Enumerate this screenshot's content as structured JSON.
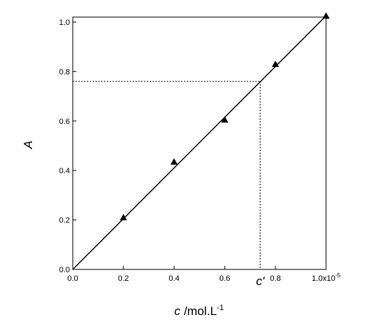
{
  "chart_data": {
    "type": "scatter",
    "xlabel_symbol": "c",
    "xlabel_unit": "/mol.L",
    "xlabel_unit_exponent": "-1",
    "ylabel": "A",
    "xlim": [
      0,
      1.0
    ],
    "ylim": [
      0,
      1.02
    ],
    "x_ticks": [
      {
        "value": 0.0,
        "label": "0.0"
      },
      {
        "value": 0.2,
        "label": "0.2"
      },
      {
        "value": 0.4,
        "label": "0.4"
      },
      {
        "value": 0.6,
        "label": "0.6"
      },
      {
        "value": 0.8,
        "label": "0.8"
      },
      {
        "value": 1.0,
        "label": "1.0x10",
        "exponent": "-5"
      }
    ],
    "y_ticks": [
      {
        "value": 0.0,
        "label": "0.0"
      },
      {
        "value": 0.2,
        "label": "0.2"
      },
      {
        "value": 0.4,
        "label": "0.4"
      },
      {
        "value": 0.6,
        "label": "0.6"
      },
      {
        "value": 0.8,
        "label": "0.8"
      },
      {
        "value": 1.0,
        "label": "1.0"
      }
    ],
    "points": {
      "marker": "triangle",
      "x": [
        0.2,
        0.4,
        0.6,
        0.8,
        1.0
      ],
      "y": [
        0.21,
        0.435,
        0.605,
        0.83,
        1.025
      ]
    },
    "fit_line": {
      "x": [
        0.0,
        1.0
      ],
      "y": [
        0.0,
        1.025
      ]
    },
    "reference": {
      "label": "c'",
      "x": 0.74,
      "y": 0.76
    },
    "grid": false,
    "legend": "none"
  }
}
